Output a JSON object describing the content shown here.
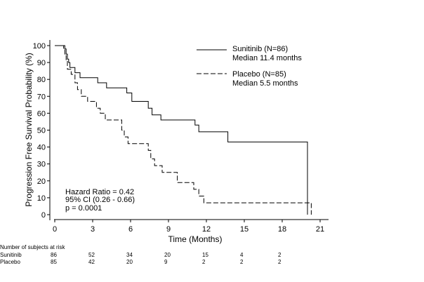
{
  "chart_data": {
    "type": "line",
    "subtype": "kaplan-meier",
    "ylabel": "Progression Free Survival Probability (%)",
    "xlabel": "Time (Months)",
    "xlim": [
      0,
      21
    ],
    "ylim": [
      0,
      100
    ],
    "xticks": [
      0,
      3,
      6,
      9,
      12,
      15,
      18,
      21
    ],
    "yticks": [
      0,
      10,
      20,
      30,
      40,
      50,
      60,
      70,
      80,
      90,
      100
    ],
    "grid": false,
    "legend_position": "top-right",
    "series": [
      {
        "name": "Sunitinib (N=86)",
        "note": "Median 11.4 months",
        "style": "solid",
        "color": "#000000",
        "points": [
          [
            0,
            100
          ],
          [
            0.8,
            100
          ],
          [
            0.8,
            98
          ],
          [
            0.9,
            98
          ],
          [
            0.9,
            95
          ],
          [
            1.0,
            95
          ],
          [
            1.0,
            92
          ],
          [
            1.1,
            92
          ],
          [
            1.1,
            90
          ],
          [
            1.2,
            90
          ],
          [
            1.2,
            87
          ],
          [
            1.6,
            87
          ],
          [
            1.6,
            84
          ],
          [
            2.0,
            84
          ],
          [
            2.0,
            81
          ],
          [
            3.4,
            81
          ],
          [
            3.4,
            78
          ],
          [
            4.1,
            78
          ],
          [
            4.1,
            75
          ],
          [
            5.7,
            75
          ],
          [
            5.7,
            72
          ],
          [
            6.1,
            72
          ],
          [
            6.1,
            67
          ],
          [
            7.4,
            67
          ],
          [
            7.4,
            63
          ],
          [
            7.7,
            63
          ],
          [
            7.7,
            59
          ],
          [
            8.4,
            59
          ],
          [
            8.4,
            56
          ],
          [
            11.1,
            56
          ],
          [
            11.1,
            53
          ],
          [
            11.4,
            53
          ],
          [
            11.4,
            49
          ],
          [
            13.7,
            49
          ],
          [
            13.7,
            43
          ],
          [
            20.0,
            43
          ],
          [
            20.0,
            0
          ]
        ]
      },
      {
        "name": "Placebo (N=85)",
        "note": "Median 5.5 months",
        "style": "dashed",
        "color": "#000000",
        "points": [
          [
            0,
            100
          ],
          [
            0.7,
            100
          ],
          [
            0.7,
            98
          ],
          [
            0.8,
            98
          ],
          [
            0.8,
            95
          ],
          [
            0.9,
            95
          ],
          [
            0.9,
            91
          ],
          [
            1.0,
            91
          ],
          [
            1.0,
            86
          ],
          [
            1.3,
            86
          ],
          [
            1.3,
            83
          ],
          [
            1.6,
            83
          ],
          [
            1.6,
            78
          ],
          [
            1.8,
            78
          ],
          [
            1.8,
            74
          ],
          [
            2.1,
            74
          ],
          [
            2.1,
            70
          ],
          [
            2.6,
            70
          ],
          [
            2.6,
            67
          ],
          [
            3.3,
            67
          ],
          [
            3.3,
            63
          ],
          [
            3.6,
            63
          ],
          [
            3.6,
            60
          ],
          [
            4.0,
            60
          ],
          [
            4.0,
            56
          ],
          [
            5.3,
            56
          ],
          [
            5.3,
            50
          ],
          [
            5.5,
            50
          ],
          [
            5.5,
            46
          ],
          [
            5.8,
            46
          ],
          [
            5.8,
            42
          ],
          [
            7.4,
            42
          ],
          [
            7.4,
            38
          ],
          [
            7.6,
            38
          ],
          [
            7.6,
            33
          ],
          [
            7.9,
            33
          ],
          [
            7.9,
            29
          ],
          [
            8.5,
            29
          ],
          [
            8.5,
            25
          ],
          [
            9.7,
            25
          ],
          [
            9.7,
            19
          ],
          [
            11.0,
            19
          ],
          [
            11.0,
            15
          ],
          [
            11.4,
            15
          ],
          [
            11.4,
            11
          ],
          [
            11.8,
            11
          ],
          [
            11.8,
            7
          ],
          [
            20.3,
            7
          ],
          [
            20.3,
            0
          ]
        ]
      }
    ],
    "stats": {
      "hazard_ratio": "Hazard Ratio = 0.42",
      "ci": "95% CI (0.26 - 0.66)",
      "p_value": "p = 0.0001"
    },
    "risk_table": {
      "title": "Number of subjects at risk",
      "times": [
        0,
        3,
        6,
        9,
        12,
        15,
        18
      ],
      "rows": [
        {
          "label": "Sunitinib",
          "values": [
            "86",
            "52",
            "34",
            "20",
            "15",
            "4",
            "2"
          ]
        },
        {
          "label": "Placebo",
          "values": [
            "85",
            "42",
            "20",
            "9",
            "2",
            "2",
            "2"
          ]
        }
      ]
    }
  }
}
